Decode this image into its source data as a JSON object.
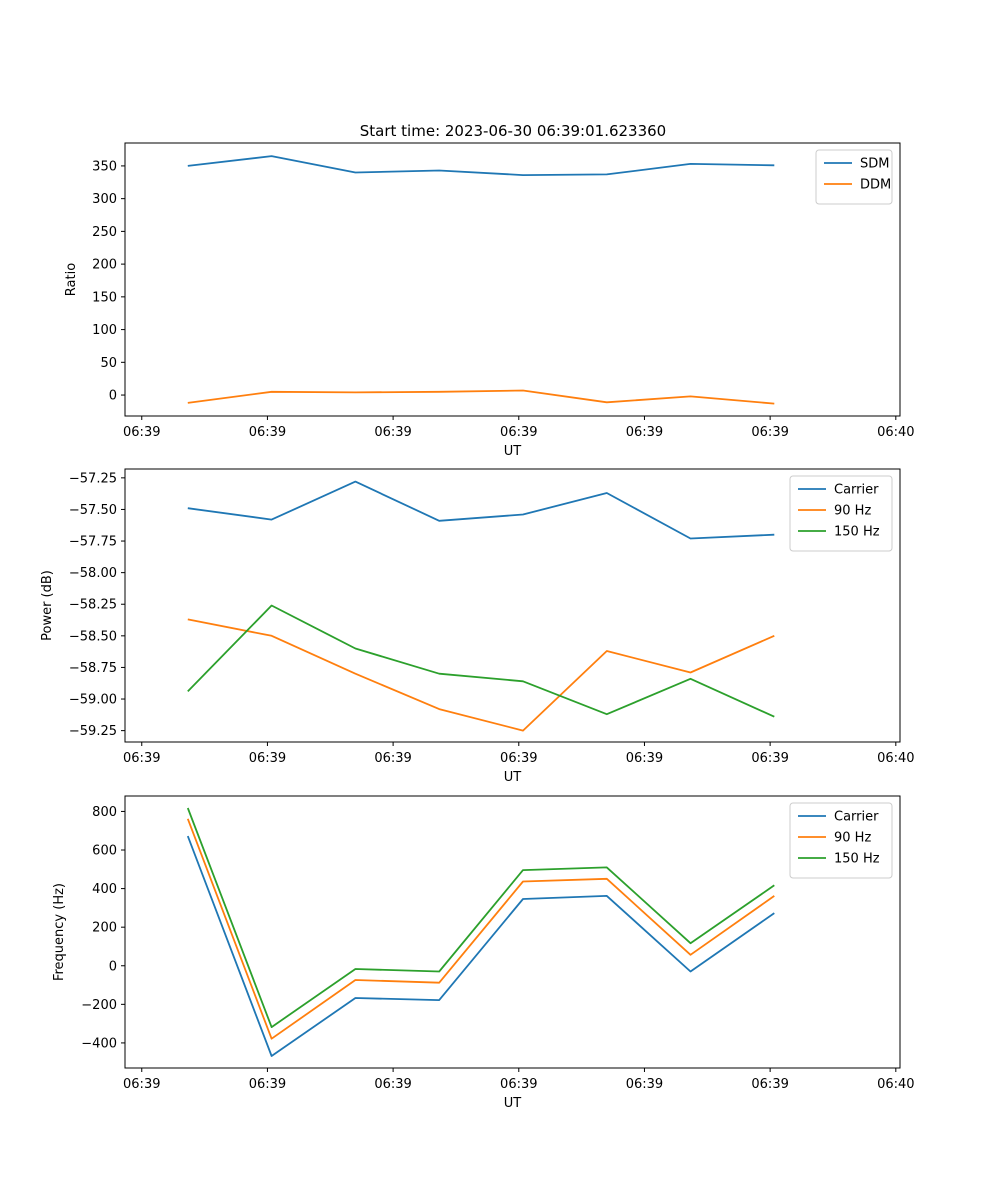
{
  "title": "Start time: 2023-06-30 06:39:01.623360",
  "colors": {
    "blue": "#1f77b4",
    "orange": "#ff7f0e",
    "green": "#2ca02c"
  },
  "chart_data": [
    {
      "type": "line",
      "title": "Start time: 2023-06-30 06:39:01.623360",
      "xlabel": "UT",
      "ylabel": "Ratio",
      "x": [
        1,
        2,
        3,
        4,
        5,
        6,
        7,
        8
      ],
      "xlim": [
        0.25,
        9.5
      ],
      "xticks": [
        0.45,
        1.95,
        3.45,
        4.95,
        6.45,
        7.95,
        9.45
      ],
      "xtick_labels": [
        "06:39",
        "06:39",
        "06:39",
        "06:39",
        "06:39",
        "06:39",
        "06:40"
      ],
      "ylim": [
        -32,
        385
      ],
      "yticks": [
        0,
        50,
        100,
        150,
        200,
        250,
        300,
        350
      ],
      "ytick_labels": [
        "0",
        "50",
        "100",
        "150",
        "200",
        "250",
        "300",
        "350"
      ],
      "legend": "top-right",
      "series": [
        {
          "name": "SDM",
          "color": "#1f77b4",
          "values": [
            350,
            365,
            340,
            343,
            336,
            337,
            353,
            351
          ]
        },
        {
          "name": "DDM",
          "color": "#ff7f0e",
          "values": [
            -12,
            5,
            4,
            5,
            7,
            -11,
            -2,
            -13
          ]
        }
      ]
    },
    {
      "type": "line",
      "xlabel": "UT",
      "ylabel": "Power (dB)",
      "x": [
        1,
        2,
        3,
        4,
        5,
        6,
        7,
        8
      ],
      "xlim": [
        0.25,
        9.5
      ],
      "xticks": [
        0.45,
        1.95,
        3.45,
        4.95,
        6.45,
        7.95,
        9.45
      ],
      "xtick_labels": [
        "06:39",
        "06:39",
        "06:39",
        "06:39",
        "06:39",
        "06:39",
        "06:40"
      ],
      "ylim": [
        -59.34,
        -57.18
      ],
      "yticks": [
        -59.25,
        -59.0,
        -58.75,
        -58.5,
        -58.25,
        -58.0,
        -57.75,
        -57.5,
        -57.25
      ],
      "ytick_labels": [
        "−59.25",
        "−59.00",
        "−58.75",
        "−58.50",
        "−58.25",
        "−58.00",
        "−57.75",
        "−57.50",
        "−57.25"
      ],
      "legend": "top-right",
      "series": [
        {
          "name": "Carrier",
          "color": "#1f77b4",
          "values": [
            -57.49,
            -57.58,
            -57.28,
            -57.59,
            -57.54,
            -57.37,
            -57.73,
            -57.7
          ]
        },
        {
          "name": "90 Hz",
          "color": "#ff7f0e",
          "values": [
            -58.37,
            -58.5,
            -58.8,
            -59.08,
            -59.25,
            -58.62,
            -58.79,
            -58.5
          ]
        },
        {
          "name": "150 Hz",
          "color": "#2ca02c",
          "values": [
            -58.94,
            -58.26,
            -58.6,
            -58.8,
            -58.86,
            -59.12,
            -58.84,
            -59.14
          ]
        }
      ]
    },
    {
      "type": "line",
      "xlabel": "UT",
      "ylabel": "Frequency (Hz)",
      "x": [
        1,
        2,
        3,
        4,
        5,
        6,
        7,
        8
      ],
      "xlim": [
        0.25,
        9.5
      ],
      "xticks": [
        0.45,
        1.95,
        3.45,
        4.95,
        6.45,
        7.95,
        9.45
      ],
      "xtick_labels": [
        "06:39",
        "06:39",
        "06:39",
        "06:39",
        "06:39",
        "06:39",
        "06:40"
      ],
      "ylim": [
        -530,
        880
      ],
      "yticks": [
        -400,
        -200,
        0,
        200,
        400,
        600,
        800
      ],
      "ytick_labels": [
        "−400",
        "−200",
        "0",
        "200",
        "400",
        "600",
        "800"
      ],
      "legend": "top-right",
      "series": [
        {
          "name": "Carrier",
          "color": "#1f77b4",
          "values": [
            672,
            -468,
            -167,
            -178,
            346,
            362,
            -30,
            273
          ]
        },
        {
          "name": "90 Hz",
          "color": "#ff7f0e",
          "values": [
            762,
            -378,
            -74,
            -88,
            437,
            451,
            57,
            362
          ]
        },
        {
          "name": "150 Hz",
          "color": "#2ca02c",
          "values": [
            818,
            -318,
            -17,
            -30,
            496,
            510,
            117,
            417
          ]
        }
      ]
    }
  ]
}
